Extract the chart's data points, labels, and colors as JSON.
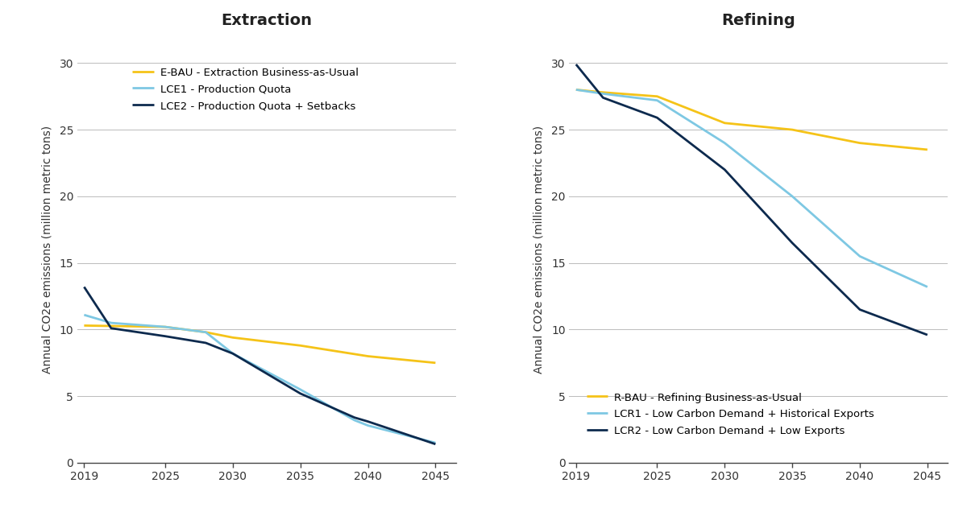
{
  "extraction": {
    "title": "Extraction",
    "ylabel": "Annual CO2e emissions (million metric tons)",
    "ylim": [
      0,
      32
    ],
    "yticks": [
      0,
      5,
      10,
      15,
      20,
      25,
      30
    ],
    "xlim": [
      2018.5,
      2046.5
    ],
    "xticks": [
      2019,
      2025,
      2030,
      2035,
      2040,
      2045
    ],
    "series": [
      {
        "label": "E-BAU - Extraction Business-as-Usual",
        "color": "#F5C318",
        "linewidth": 2.0,
        "x": [
          2019,
          2022,
          2025,
          2028,
          2030,
          2035,
          2040,
          2045
        ],
        "y": [
          10.3,
          10.25,
          10.2,
          9.8,
          9.4,
          8.8,
          8.0,
          7.5
        ]
      },
      {
        "label": "LCE1 - Production Quota",
        "color": "#7EC8E3",
        "linewidth": 2.0,
        "x": [
          2019,
          2021,
          2025,
          2028,
          2030,
          2035,
          2039,
          2040,
          2045
        ],
        "y": [
          11.1,
          10.5,
          10.2,
          9.8,
          8.2,
          5.5,
          3.2,
          2.8,
          1.5
        ]
      },
      {
        "label": "LCE2 - Production Quota + Setbacks",
        "color": "#0D2A4E",
        "linewidth": 2.0,
        "x": [
          2019,
          2021,
          2025,
          2028,
          2030,
          2035,
          2039,
          2040,
          2045
        ],
        "y": [
          13.2,
          10.1,
          9.5,
          9.0,
          8.2,
          5.2,
          3.4,
          3.1,
          1.4
        ]
      }
    ]
  },
  "refining": {
    "title": "Refining",
    "ylabel": "Annual CO2e emissions (million metric tons)",
    "ylim": [
      0,
      32
    ],
    "yticks": [
      0,
      5,
      10,
      15,
      20,
      25,
      30
    ],
    "xlim": [
      2018.5,
      2046.5
    ],
    "xticks": [
      2019,
      2025,
      2030,
      2035,
      2040,
      2045
    ],
    "series": [
      {
        "label": "R-BAU - Refining Business-as-Usual",
        "color": "#F5C318",
        "linewidth": 2.0,
        "x": [
          2019,
          2021,
          2025,
          2030,
          2035,
          2040,
          2045
        ],
        "y": [
          28.0,
          27.8,
          27.5,
          25.5,
          25.0,
          24.0,
          23.5
        ]
      },
      {
        "label": "LCR1 - Low Carbon Demand + Historical Exports",
        "color": "#7EC8E3",
        "linewidth": 2.0,
        "x": [
          2019,
          2021,
          2025,
          2030,
          2035,
          2040,
          2045
        ],
        "y": [
          28.0,
          27.7,
          27.2,
          24.0,
          20.0,
          15.5,
          13.2
        ]
      },
      {
        "label": "LCR2 - Low Carbon Demand + Low Exports",
        "color": "#0D2A4E",
        "linewidth": 2.0,
        "x": [
          2019,
          2021,
          2025,
          2030,
          2035,
          2040,
          2045
        ],
        "y": [
          29.9,
          27.4,
          25.9,
          22.0,
          16.5,
          11.5,
          9.6
        ]
      }
    ]
  },
  "background_color": "#FFFFFF",
  "grid_color": "#BBBBBB",
  "title_fontsize": 14,
  "label_fontsize": 10,
  "tick_fontsize": 10,
  "legend_fontsize": 9.5
}
